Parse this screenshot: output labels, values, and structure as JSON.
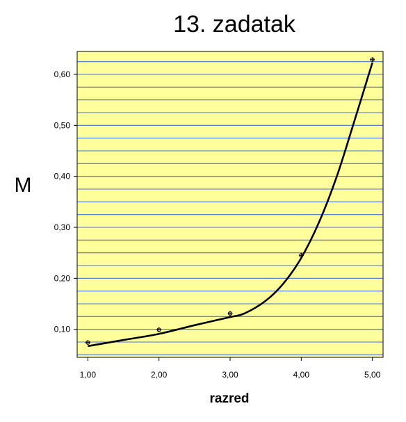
{
  "chart_data": {
    "type": "line",
    "title": "13. zadatak",
    "xlabel": "razred",
    "ylabel": "M",
    "xlim": [
      0.85,
      5.15
    ],
    "ylim": [
      0.045,
      0.645
    ],
    "x_ticks": [
      1,
      2,
      3,
      4,
      5
    ],
    "x_tick_labels": [
      "1,00",
      "2,00",
      "3,00",
      "4,00",
      "5,00"
    ],
    "y_ticks": [
      0.1,
      0.2,
      0.3,
      0.4,
      0.5,
      0.6
    ],
    "y_tick_labels": [
      "0,10",
      "0,20",
      "0,30",
      "0,40",
      "0,50",
      "0,60"
    ],
    "grid": true,
    "grid_color": "#4a6fd8",
    "background_color": "#ffff9c",
    "line_color": "#000000",
    "series": [
      {
        "points": [
          {
            "x": 1,
            "y": 0.074
          },
          {
            "x": 2,
            "y": 0.099
          },
          {
            "x": 3,
            "y": 0.131
          },
          {
            "x": 4,
            "y": 0.245
          },
          {
            "x": 5,
            "y": 0.629
          }
        ],
        "fit_curve": [
          {
            "x": 1.0,
            "y": 0.067
          },
          {
            "x": 1.5,
            "y": 0.079
          },
          {
            "x": 2.0,
            "y": 0.091
          },
          {
            "x": 2.5,
            "y": 0.108
          },
          {
            "x": 3.0,
            "y": 0.124
          },
          {
            "x": 3.2,
            "y": 0.131
          },
          {
            "x": 3.5,
            "y": 0.156
          },
          {
            "x": 3.75,
            "y": 0.19
          },
          {
            "x": 4.0,
            "y": 0.24
          },
          {
            "x": 4.25,
            "y": 0.31
          },
          {
            "x": 4.5,
            "y": 0.4
          },
          {
            "x": 4.75,
            "y": 0.51
          },
          {
            "x": 5.0,
            "y": 0.623
          }
        ]
      }
    ]
  }
}
